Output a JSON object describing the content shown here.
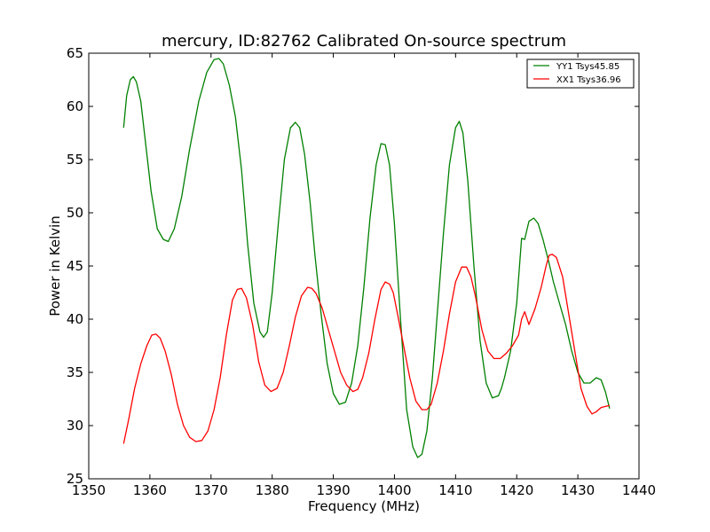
{
  "chart_data": {
    "type": "line",
    "title": "mercury, ID:82762 Calibrated On-source spectrum",
    "xlabel": "Frequency (MHz)",
    "ylabel": "Power in Kelvin",
    "xlim": [
      1350,
      1440
    ],
    "ylim": [
      25,
      65
    ],
    "xticks": [
      1350,
      1360,
      1370,
      1380,
      1390,
      1400,
      1410,
      1420,
      1430,
      1440
    ],
    "yticks": [
      25,
      30,
      35,
      40,
      45,
      50,
      55,
      60,
      65
    ],
    "grid": false,
    "legend_position": "top-right",
    "series": [
      {
        "name": "YY1 Tsys45.85",
        "color": "#008000",
        "x": [
          1355.7,
          1356.2,
          1356.8,
          1357.3,
          1357.8,
          1358.5,
          1359.3,
          1360.2,
          1361.2,
          1362.2,
          1363.0,
          1364.0,
          1365.2,
          1366.5,
          1368.0,
          1369.3,
          1370.5,
          1371.3,
          1372.0,
          1373.0,
          1374.0,
          1375.0,
          1376.0,
          1377.0,
          1378.0,
          1378.6,
          1379.2,
          1380.0,
          1381.0,
          1382.0,
          1383.0,
          1383.8,
          1384.5,
          1385.3,
          1386.2,
          1387.0,
          1388.0,
          1389.0,
          1390.0,
          1391.0,
          1392.0,
          1393.0,
          1394.0,
          1395.0,
          1396.0,
          1397.0,
          1397.8,
          1398.5,
          1399.2,
          1400.0,
          1401.0,
          1402.0,
          1403.0,
          1403.8,
          1404.5,
          1405.3,
          1406.2,
          1407.0,
          1408.0,
          1409.0,
          1410.0,
          1410.6,
          1411.2,
          1412.0,
          1413.0,
          1414.0,
          1415.0,
          1416.0,
          1417.0,
          1417.5,
          1418.0,
          1419.0,
          1420.0,
          1420.8,
          1421.3,
          1422.0,
          1422.8,
          1423.5,
          1424.3,
          1425.2,
          1426.0,
          1427.0,
          1428.0,
          1429.0,
          1430.0,
          1431.0,
          1432.0,
          1433.0,
          1433.8,
          1434.5,
          1435.2
        ],
        "values": [
          58.0,
          61.0,
          62.5,
          62.8,
          62.3,
          60.5,
          56.5,
          52.0,
          48.5,
          47.5,
          47.3,
          48.5,
          51.5,
          56.0,
          60.5,
          63.2,
          64.4,
          64.5,
          64.0,
          62.0,
          59.0,
          54.0,
          47.0,
          41.5,
          38.8,
          38.3,
          38.8,
          42.5,
          49.0,
          55.0,
          58.0,
          58.5,
          58.0,
          55.5,
          51.0,
          46.0,
          40.5,
          35.8,
          33.0,
          32.0,
          32.2,
          34.0,
          37.5,
          43.0,
          49.5,
          54.5,
          56.5,
          56.4,
          54.5,
          49.0,
          40.0,
          31.5,
          28.0,
          27.0,
          27.3,
          29.5,
          34.5,
          40.5,
          48.0,
          54.5,
          58.0,
          58.6,
          57.5,
          53.0,
          45.0,
          38.0,
          34.0,
          32.6,
          32.8,
          33.5,
          34.5,
          37.0,
          41.5,
          47.6,
          47.5,
          49.2,
          49.5,
          49.0,
          47.5,
          45.5,
          43.5,
          41.5,
          39.5,
          37.0,
          35.0,
          34.0,
          34.0,
          34.5,
          34.3,
          33.2,
          31.6
        ]
      },
      {
        "name": "XX1 Tsys36.96",
        "color": "#ff0000",
        "x": [
          1355.7,
          1356.5,
          1357.5,
          1358.5,
          1359.5,
          1360.3,
          1361.0,
          1361.7,
          1362.5,
          1363.5,
          1364.5,
          1365.5,
          1366.5,
          1367.5,
          1368.5,
          1369.5,
          1370.5,
          1371.5,
          1372.5,
          1373.5,
          1374.3,
          1375.0,
          1375.8,
          1376.8,
          1377.8,
          1378.8,
          1379.8,
          1380.8,
          1381.8,
          1382.8,
          1383.8,
          1384.8,
          1385.8,
          1386.5,
          1387.2,
          1388.2,
          1389.2,
          1390.2,
          1391.2,
          1392.2,
          1393.2,
          1394.0,
          1394.8,
          1395.8,
          1396.8,
          1397.8,
          1398.5,
          1399.2,
          1399.8,
          1400.5,
          1401.5,
          1402.5,
          1403.5,
          1404.5,
          1405.3,
          1406.0,
          1407.0,
          1408.0,
          1409.0,
          1410.0,
          1411.0,
          1411.8,
          1412.5,
          1413.3,
          1414.3,
          1415.3,
          1416.3,
          1417.3,
          1418.3,
          1419.3,
          1420.3,
          1420.8,
          1421.3,
          1422.0,
          1423.0,
          1424.0,
          1424.8,
          1425.3,
          1425.8,
          1426.5,
          1427.5,
          1428.5,
          1429.5,
          1430.5,
          1431.5,
          1432.3,
          1433.0,
          1433.8,
          1434.5,
          1435.2
        ],
        "values": [
          28.3,
          30.5,
          33.5,
          35.8,
          37.5,
          38.5,
          38.6,
          38.2,
          37.0,
          34.8,
          32.0,
          30.0,
          28.9,
          28.5,
          28.6,
          29.5,
          31.5,
          34.5,
          38.5,
          41.8,
          42.8,
          42.9,
          42.0,
          39.5,
          36.0,
          33.8,
          33.2,
          33.5,
          35.0,
          37.5,
          40.2,
          42.2,
          43.0,
          42.9,
          42.4,
          41.0,
          39.0,
          37.0,
          35.0,
          33.8,
          33.2,
          33.4,
          34.5,
          36.8,
          40.0,
          42.8,
          43.5,
          43.3,
          42.5,
          40.5,
          37.5,
          34.5,
          32.3,
          31.5,
          31.5,
          32.0,
          34.0,
          37.0,
          40.5,
          43.5,
          44.9,
          44.9,
          44.0,
          42.0,
          39.0,
          37.0,
          36.3,
          36.3,
          36.8,
          37.5,
          38.5,
          40.0,
          40.7,
          39.5,
          41.0,
          43.0,
          45.0,
          46.0,
          46.1,
          45.8,
          44.0,
          40.5,
          37.0,
          33.5,
          31.8,
          31.1,
          31.3,
          31.7,
          31.8,
          31.9
        ]
      }
    ]
  }
}
